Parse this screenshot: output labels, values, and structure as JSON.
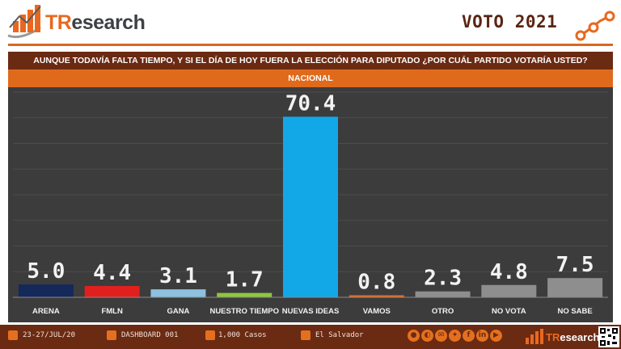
{
  "header": {
    "brand_t": "TR",
    "brand_rest": "esearch",
    "title": "VOTO 2021"
  },
  "question": "AUNQUE TODAVÍA FALTA TIEMPO, Y SI EL DÍA DE HOY FUERA LA ELECCIÓN PARA DIPUTADO ¿POR CUÁL PARTIDO VOTARÍA USTED?",
  "subheader": "NACIONAL",
  "chart_data": {
    "type": "bar",
    "categories": [
      "ARENA",
      "FMLN",
      "GANA",
      "NUESTRO TIEMPO",
      "NUEVAS IDEAS",
      "VAMOS",
      "OTRO",
      "NO VOTA",
      "NO SABE"
    ],
    "values": [
      5.0,
      4.4,
      3.1,
      1.7,
      70.4,
      0.8,
      2.3,
      4.8,
      7.5
    ],
    "value_labels": [
      "5.0",
      "4.4",
      "3.1",
      "1.7",
      "70.4",
      "0.8",
      "2.3",
      "4.8",
      "7.5"
    ],
    "colors": [
      "#14285a",
      "#e1201e",
      "#8dc1df",
      "#8dc63f",
      "#12a8e8",
      "#e86a1e",
      "#8e8e8e",
      "#8e8e8e",
      "#8e8e8e"
    ],
    "ylim": [
      0,
      80
    ],
    "grid": true,
    "title": "",
    "xlabel": "",
    "ylabel": ""
  },
  "footer": {
    "date": "23-27/JUL/20",
    "dashboard": "DASHBOARD 001",
    "cases": "1,000 Casos",
    "country": "El Salvador",
    "brand_t": "TR",
    "brand_rest": "esearch",
    "social_icons": [
      "globe-icon",
      "whatsapp-icon",
      "email-icon",
      "twitter-icon",
      "facebook-icon",
      "linkedin-icon",
      "youtube-icon"
    ]
  }
}
